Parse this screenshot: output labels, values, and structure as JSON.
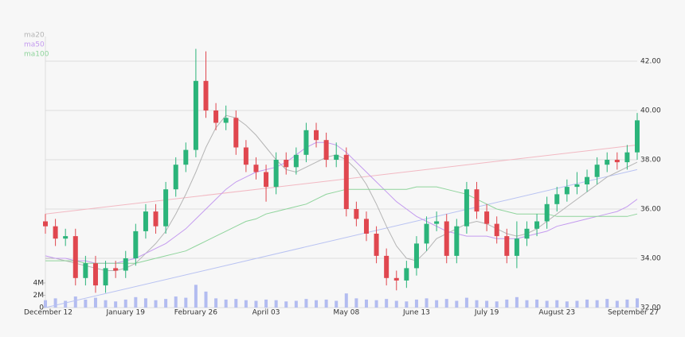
{
  "chart_data": {
    "type": "candlestick",
    "categories": [
      "December 12",
      null,
      null,
      null,
      null,
      null,
      null,
      null,
      "January 19",
      null,
      null,
      null,
      null,
      null,
      null,
      "February 26",
      null,
      null,
      null,
      null,
      null,
      null,
      "April 03",
      null,
      null,
      null,
      null,
      null,
      null,
      null,
      "May 08",
      null,
      null,
      null,
      null,
      null,
      null,
      "June 13",
      null,
      null,
      null,
      null,
      null,
      null,
      "July 19",
      null,
      null,
      null,
      null,
      null,
      null,
      "August 23",
      null,
      null,
      null,
      null,
      null,
      null,
      null,
      "September 27"
    ],
    "open": [
      35.5,
      35.3,
      34.8,
      34.9,
      33.2,
      33.8,
      32.9,
      33.6,
      33.5,
      34.0,
      35.1,
      35.9,
      35.3,
      36.8,
      37.8,
      38.4,
      41.2,
      40.0,
      39.5,
      39.7,
      38.5,
      37.8,
      37.5,
      36.9,
      38.0,
      37.7,
      38.2,
      39.2,
      38.8,
      38.0,
      38.2,
      36.0,
      35.6,
      35.0,
      34.1,
      33.2,
      33.1,
      33.6,
      34.6,
      35.4,
      35.5,
      34.1,
      35.3,
      36.8,
      35.9,
      35.4,
      34.9,
      34.1,
      34.8,
      35.2,
      35.5,
      36.2,
      36.6,
      36.9,
      37.0,
      37.3,
      37.8,
      38.0,
      37.9,
      38.3
    ],
    "high": [
      35.8,
      35.6,
      35.2,
      35.2,
      34.1,
      34.1,
      33.9,
      33.9,
      34.3,
      35.4,
      36.2,
      36.2,
      37.1,
      38.1,
      38.7,
      42.5,
      42.4,
      40.3,
      40.2,
      40.0,
      38.8,
      38.1,
      37.8,
      38.3,
      38.3,
      38.5,
      39.5,
      39.5,
      39.1,
      38.7,
      38.5,
      36.3,
      35.9,
      35.3,
      34.4,
      33.5,
      33.9,
      34.9,
      35.7,
      35.9,
      35.8,
      35.6,
      37.1,
      37.1,
      36.2,
      35.7,
      35.2,
      35.5,
      35.5,
      35.8,
      36.5,
      36.9,
      37.2,
      37.5,
      37.6,
      38.1,
      38.3,
      38.3,
      38.6,
      39.9
    ],
    "low": [
      35.0,
      34.5,
      34.5,
      32.9,
      32.9,
      32.6,
      32.6,
      33.2,
      33.2,
      33.7,
      34.8,
      35.0,
      35.0,
      36.5,
      37.5,
      38.1,
      39.7,
      39.2,
      39.2,
      38.2,
      37.5,
      37.2,
      36.3,
      36.6,
      37.4,
      37.4,
      37.9,
      38.5,
      37.7,
      37.7,
      35.7,
      35.3,
      34.7,
      33.8,
      32.9,
      32.7,
      32.8,
      33.3,
      34.3,
      35.1,
      33.8,
      33.8,
      35.0,
      35.6,
      35.1,
      34.6,
      33.8,
      33.6,
      34.5,
      34.9,
      35.2,
      35.9,
      36.3,
      36.6,
      36.7,
      37.0,
      37.5,
      37.6,
      37.6,
      38.0
    ],
    "close": [
      35.3,
      34.8,
      34.9,
      33.2,
      33.8,
      32.9,
      33.6,
      33.5,
      34.0,
      35.1,
      35.9,
      35.3,
      36.8,
      37.8,
      38.4,
      41.2,
      40.0,
      39.5,
      39.7,
      38.5,
      37.8,
      37.5,
      36.9,
      38.0,
      37.7,
      38.2,
      39.2,
      38.8,
      38.0,
      38.2,
      36.0,
      35.6,
      35.0,
      34.1,
      33.2,
      33.1,
      33.6,
      34.6,
      35.4,
      35.5,
      34.1,
      35.3,
      36.8,
      35.9,
      35.4,
      34.9,
      34.1,
      34.8,
      35.2,
      35.5,
      36.2,
      36.6,
      36.9,
      37.0,
      37.3,
      37.8,
      38.0,
      37.9,
      38.3,
      39.6
    ],
    "volume": [
      1200000,
      1500000,
      1100000,
      1800000,
      1300000,
      1600000,
      1200000,
      1000000,
      1300000,
      1700000,
      1500000,
      1200000,
      1400000,
      1800000,
      1600000,
      3700000,
      2600000,
      1500000,
      1300000,
      1400000,
      1200000,
      1100000,
      1300000,
      1200000,
      1000000,
      1100000,
      1400000,
      1200000,
      1300000,
      1100000,
      2300000,
      1500000,
      1300000,
      1200000,
      1400000,
      1100000,
      1000000,
      1300000,
      1500000,
      1200000,
      1400000,
      1100000,
      1600000,
      1200000,
      1100000,
      1000000,
      1300000,
      1700000,
      1200000,
      1300000,
      1100000,
      1200000,
      1000000,
      1100000,
      1300000,
      1200000,
      1400000,
      1100000,
      1300000,
      1500000
    ],
    "series": [
      {
        "name": "ma20",
        "color": "#b5b5b5",
        "values": [
          34.0,
          34.0,
          33.9,
          33.8,
          33.7,
          33.6,
          33.5,
          33.5,
          33.6,
          33.8,
          34.2,
          34.6,
          35.1,
          35.8,
          36.6,
          37.5,
          38.5,
          39.3,
          39.8,
          39.7,
          39.4,
          39.0,
          38.5,
          38.0,
          37.6,
          37.5,
          37.7,
          37.9,
          38.1,
          38.2,
          38.0,
          37.6,
          37.0,
          36.2,
          35.3,
          34.5,
          34.0,
          33.9,
          34.3,
          34.8,
          35.0,
          35.2,
          35.4,
          35.5,
          35.4,
          35.2,
          35.0,
          34.9,
          35.0,
          35.2,
          35.5,
          35.8,
          36.1,
          36.4,
          36.7,
          37.0,
          37.3,
          37.5,
          37.7,
          37.9
        ]
      },
      {
        "name": "ma50",
        "color": "#c49bef",
        "values": [
          34.1,
          34.0,
          34.0,
          33.9,
          33.9,
          33.8,
          33.8,
          33.8,
          33.9,
          34.0,
          34.2,
          34.4,
          34.6,
          34.9,
          35.2,
          35.6,
          36.0,
          36.4,
          36.8,
          37.1,
          37.3,
          37.5,
          37.6,
          37.7,
          37.9,
          38.2,
          38.5,
          38.7,
          38.7,
          38.6,
          38.3,
          37.9,
          37.5,
          37.1,
          36.7,
          36.3,
          36.0,
          35.7,
          35.5,
          35.3,
          35.1,
          35.0,
          34.9,
          34.9,
          34.9,
          34.8,
          34.8,
          34.8,
          34.9,
          35.0,
          35.1,
          35.3,
          35.4,
          35.5,
          35.6,
          35.7,
          35.8,
          35.9,
          36.1,
          36.4
        ]
      },
      {
        "name": "ma100",
        "color": "#8fd49c",
        "values": [
          33.9,
          33.9,
          33.9,
          33.9,
          33.8,
          33.8,
          33.8,
          33.8,
          33.8,
          33.8,
          33.9,
          34.0,
          34.1,
          34.2,
          34.3,
          34.5,
          34.7,
          34.9,
          35.1,
          35.3,
          35.5,
          35.6,
          35.8,
          35.9,
          36.0,
          36.1,
          36.2,
          36.4,
          36.6,
          36.7,
          36.8,
          36.8,
          36.8,
          36.8,
          36.8,
          36.8,
          36.8,
          36.9,
          36.9,
          36.9,
          36.8,
          36.7,
          36.6,
          36.4,
          36.2,
          36.0,
          35.9,
          35.8,
          35.8,
          35.8,
          35.8,
          35.7,
          35.7,
          35.7,
          35.7,
          35.7,
          35.7,
          35.7,
          35.7,
          35.8
        ]
      }
    ],
    "trendlines": [
      {
        "color": "#f2b8c2",
        "values": [
          35.8,
          38.6
        ]
      },
      {
        "color": "#b8c2f2",
        "values": [
          32.0,
          37.6
        ]
      }
    ],
    "up_color": "#2bb47a",
    "down_color": "#e0474f",
    "volume_color": "#b3bcf0",
    "ylim": [
      32,
      43
    ],
    "yticks": [
      {
        "value": 42,
        "label": "42.00"
      },
      {
        "value": 40,
        "label": "40.00"
      },
      {
        "value": 38,
        "label": "38.00"
      },
      {
        "value": 36,
        "label": "36.00"
      },
      {
        "value": 34,
        "label": "34.00"
      },
      {
        "value": 32,
        "label": "32.00"
      }
    ],
    "vlim": [
      0,
      4000000
    ],
    "vticks": [
      {
        "value": 4000000,
        "label": "4M"
      },
      {
        "value": 2000000,
        "label": "2M"
      },
      0
    ],
    "grid": true
  }
}
